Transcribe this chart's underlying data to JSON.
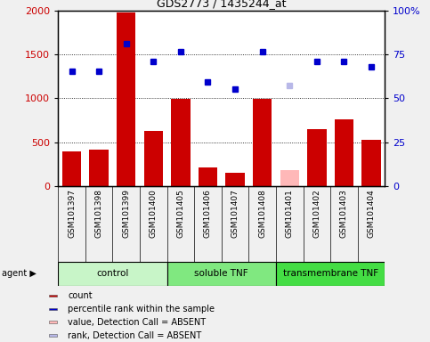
{
  "title": "GDS2773 / 1435244_at",
  "samples": [
    "GSM101397",
    "GSM101398",
    "GSM101399",
    "GSM101400",
    "GSM101405",
    "GSM101406",
    "GSM101407",
    "GSM101408",
    "GSM101401",
    "GSM101402",
    "GSM101403",
    "GSM101404"
  ],
  "counts": [
    400,
    420,
    1970,
    630,
    990,
    215,
    155,
    990,
    null,
    650,
    760,
    530
  ],
  "absent_counts": [
    null,
    null,
    null,
    null,
    null,
    null,
    null,
    null,
    185,
    null,
    null,
    null
  ],
  "percentile_ranks": [
    1310,
    1310,
    1620,
    1420,
    1530,
    1190,
    1110,
    1530,
    null,
    1420,
    1420,
    1360
  ],
  "absent_ranks": [
    null,
    null,
    null,
    null,
    null,
    null,
    null,
    null,
    1150,
    null,
    null,
    null
  ],
  "groups": [
    {
      "label": "control",
      "start": 0,
      "end": 4,
      "color": "#c8f5c8"
    },
    {
      "label": "soluble TNF",
      "start": 4,
      "end": 8,
      "color": "#80e880"
    },
    {
      "label": "transmembrane TNF",
      "start": 8,
      "end": 12,
      "color": "#44dd44"
    }
  ],
  "bar_color": "#cc0000",
  "absent_bar_color": "#ffb8b8",
  "dot_color": "#0000cc",
  "absent_dot_color": "#b8b8e8",
  "ylim_left": [
    0,
    2000
  ],
  "ylim_right": [
    0,
    100
  ],
  "yticks_left": [
    0,
    500,
    1000,
    1500,
    2000
  ],
  "yticks_right": [
    0,
    25,
    50,
    75,
    100
  ],
  "label_bg_color": "#d0d0d0",
  "plot_bg_color": "#ffffff",
  "fig_bg_color": "#f0f0f0",
  "legend_items": [
    {
      "label": "count",
      "color": "#cc0000"
    },
    {
      "label": "percentile rank within the sample",
      "color": "#0000cc"
    },
    {
      "label": "value, Detection Call = ABSENT",
      "color": "#ffb8b8"
    },
    {
      "label": "rank, Detection Call = ABSENT",
      "color": "#b8b8e8"
    }
  ]
}
